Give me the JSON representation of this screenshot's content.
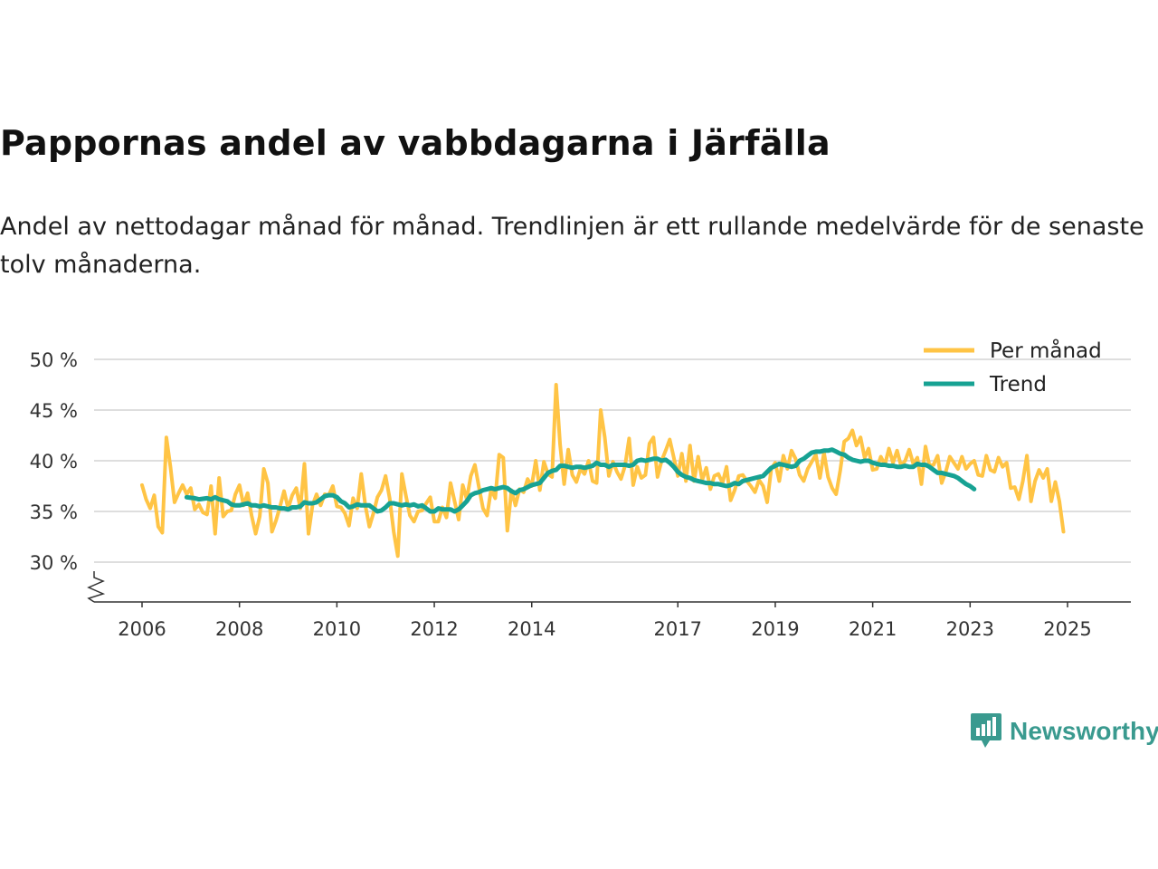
{
  "header": {
    "title": "Pappornas andel av vabbdagarna i Järfälla",
    "subtitle": "Andel av nettodagar månad för månad. Trendlinjen är ett rullande medelvärde för de senaste tolv månaderna."
  },
  "brand": {
    "name": "Newsworthy",
    "color": "#3a9a8f"
  },
  "chart_data": {
    "type": "line",
    "title": "Pappornas andel av vabbdagarna i Järfälla",
    "xlabel": "",
    "ylabel": "",
    "xlim": [
      2006.0,
      2026.3
    ],
    "ylim": [
      26,
      50
    ],
    "y_ticks": [
      30,
      35,
      40,
      45,
      50
    ],
    "y_tick_labels": [
      "30 %",
      "35 %",
      "40 %",
      "45 %",
      "50 %"
    ],
    "x_ticks": [
      2006,
      2008,
      2010,
      2012,
      2014,
      2017,
      2019,
      2021,
      2023,
      2025
    ],
    "x_tick_labels": [
      "2006",
      "2008",
      "2010",
      "2012",
      "2014",
      "2017",
      "2019",
      "2021",
      "2023",
      "2025"
    ],
    "axis_break": true,
    "grid": "horizontal",
    "legend_position": "top-right",
    "series": [
      {
        "name": "Per månad",
        "color": "#ffc445",
        "start": 2006.0,
        "step": 0.0833333,
        "values": [
          37.6,
          36.2,
          35.3,
          36.6,
          33.5,
          32.9,
          42.3,
          39.4,
          35.9,
          36.8,
          37.6,
          36.7,
          37.3,
          35.2,
          35.7,
          34.9,
          34.7,
          37.5,
          32.8,
          38.3,
          34.5,
          35.0,
          35.1,
          36.7,
          37.6,
          35.6,
          36.8,
          34.6,
          32.8,
          34.5,
          39.2,
          37.8,
          33.0,
          34.1,
          35.5,
          37.0,
          35.3,
          36.6,
          37.3,
          35.3,
          39.7,
          32.8,
          35.6,
          36.7,
          35.6,
          36.7,
          36.6,
          37.5,
          35.5,
          35.4,
          34.8,
          33.6,
          36.3,
          35.3,
          38.7,
          35.6,
          33.5,
          34.8,
          36.4,
          37.1,
          38.5,
          36.3,
          33.0,
          30.6,
          38.7,
          36.6,
          34.6,
          34.0,
          35.0,
          35.1,
          35.8,
          36.4,
          34.0,
          34.0,
          35.4,
          34.4,
          37.8,
          36.0,
          34.2,
          37.6,
          36.2,
          38.5,
          39.6,
          37.4,
          35.3,
          34.6,
          37.2,
          36.3,
          40.6,
          40.3,
          33.1,
          37.1,
          35.6,
          37.2,
          36.9,
          38.2,
          37.5,
          40.0,
          37.1,
          39.9,
          38.7,
          38.4,
          47.5,
          41.6,
          37.7,
          41.1,
          38.6,
          37.9,
          39.2,
          38.7,
          40.0,
          38.0,
          37.8,
          45.0,
          42.3,
          38.5,
          39.9,
          38.9,
          38.2,
          39.5,
          42.2,
          37.6,
          39.4,
          38.3,
          38.6,
          41.7,
          42.3,
          38.4,
          40.0,
          41.0,
          42.1,
          40.3,
          38.5,
          40.7,
          38.0,
          41.5,
          38.0,
          40.4,
          38.1,
          39.3,
          37.2,
          38.5,
          38.7,
          37.8,
          39.4,
          36.1,
          37.1,
          38.5,
          38.6,
          38.0,
          37.5,
          36.9,
          38.1,
          37.5,
          35.9,
          39.2,
          39.8,
          38.0,
          40.5,
          39.2,
          41.0,
          40.2,
          38.6,
          38.0,
          39.2,
          39.9,
          40.6,
          38.3,
          40.8,
          38.4,
          37.3,
          36.7,
          39.0,
          41.9,
          42.2,
          43.0,
          41.5,
          42.3,
          40.3,
          41.2,
          39.1,
          39.2,
          40.4,
          39.6,
          41.2,
          39.8,
          41.0,
          39.5,
          40.0,
          41.1,
          39.7,
          40.3,
          37.7,
          41.4,
          39.5,
          39.6,
          40.5,
          37.8,
          38.9,
          40.4,
          39.8,
          39.2,
          40.4,
          39.2,
          39.7,
          40.0,
          38.6,
          38.5,
          40.5,
          39.1,
          38.9,
          40.3,
          39.4,
          39.8,
          37.3,
          37.4,
          36.2,
          38.0,
          40.5,
          36.0,
          38.0,
          39.1,
          38.3,
          39.2,
          36.0,
          37.9,
          36.0,
          33.0
        ]
      },
      {
        "name": "Trend",
        "color": "#17a293",
        "start": 2006.9167,
        "step": 0.0833333,
        "values": [
          36.4,
          36.35,
          36.3,
          36.2,
          36.25,
          36.3,
          36.2,
          36.4,
          36.2,
          36.1,
          36.0,
          35.7,
          35.6,
          35.6,
          35.7,
          35.8,
          35.6,
          35.6,
          35.5,
          35.6,
          35.5,
          35.4,
          35.4,
          35.3,
          35.3,
          35.2,
          35.4,
          35.4,
          35.5,
          35.9,
          35.8,
          35.8,
          35.9,
          36.2,
          36.5,
          36.6,
          36.6,
          36.4,
          36.0,
          35.8,
          35.4,
          35.5,
          35.7,
          35.6,
          35.6,
          35.6,
          35.3,
          35.0,
          35.1,
          35.4,
          35.8,
          35.8,
          35.7,
          35.6,
          35.7,
          35.6,
          35.7,
          35.5,
          35.6,
          35.3,
          35.0,
          35.0,
          35.3,
          35.2,
          35.2,
          35.2,
          35.0,
          35.2,
          35.6,
          36.0,
          36.6,
          36.8,
          36.9,
          37.1,
          37.2,
          37.3,
          37.2,
          37.3,
          37.4,
          37.3,
          37.0,
          36.8,
          37.1,
          37.2,
          37.4,
          37.6,
          37.7,
          37.8,
          38.3,
          38.8,
          39.0,
          39.1,
          39.5,
          39.5,
          39.4,
          39.3,
          39.4,
          39.4,
          39.3,
          39.4,
          39.5,
          39.8,
          39.6,
          39.6,
          39.4,
          39.6,
          39.6,
          39.6,
          39.6,
          39.5,
          39.6,
          40.0,
          40.1,
          40.0,
          40.1,
          40.2,
          40.2,
          40.0,
          40.1,
          39.8,
          39.4,
          38.9,
          38.6,
          38.4,
          38.3,
          38.1,
          38.0,
          37.9,
          37.8,
          37.8,
          37.7,
          37.7,
          37.6,
          37.5,
          37.6,
          37.8,
          37.7,
          38.0,
          38.1,
          38.2,
          38.3,
          38.4,
          38.5,
          38.9,
          39.3,
          39.5,
          39.7,
          39.6,
          39.5,
          39.4,
          39.5,
          40.0,
          40.2,
          40.5,
          40.8,
          40.9,
          40.9,
          41.0,
          41.0,
          41.1,
          40.9,
          40.7,
          40.6,
          40.3,
          40.1,
          40.0,
          39.9,
          40.0,
          40.0,
          39.8,
          39.7,
          39.6,
          39.6,
          39.5,
          39.5,
          39.4,
          39.4,
          39.5,
          39.4,
          39.4,
          39.7,
          39.6,
          39.6,
          39.4,
          39.1,
          38.8,
          38.8,
          38.7,
          38.6,
          38.5,
          38.3,
          38.0,
          37.7,
          37.5,
          37.2
        ]
      }
    ]
  }
}
